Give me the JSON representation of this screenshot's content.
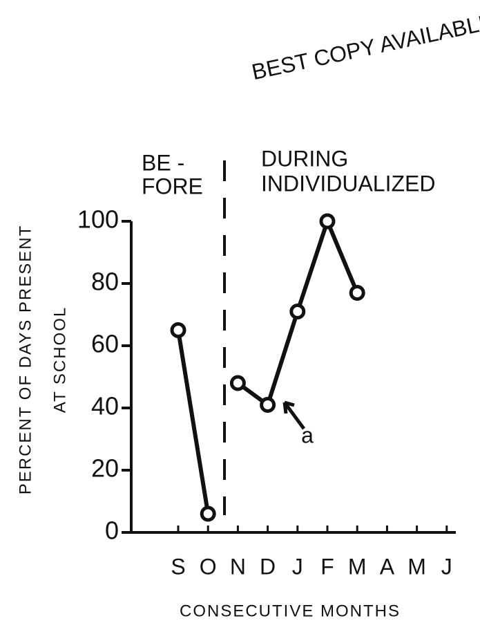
{
  "chart_data": {
    "type": "line",
    "stamp": "BEST COPY AVAILABLE",
    "ylabel": [
      "PERCENT OF DAYS PRESENT",
      "AT SCHOOL"
    ],
    "xlabel": "CONSECUTIVE MONTHS",
    "annotations": [
      "BE -",
      "FORE",
      "DURING",
      "INDIVIDUALIZED",
      "a"
    ],
    "categories": [
      "S",
      "O",
      "N",
      "D",
      "J",
      "F",
      "M",
      "A",
      "M",
      "J"
    ],
    "series": [
      {
        "color": "#111111",
        "values": [
          65,
          6,
          null,
          null,
          null,
          null,
          null,
          null,
          null,
          null
        ]
      },
      {
        "color": "#111111",
        "values": [
          null,
          null,
          48,
          41,
          71,
          100,
          77,
          null,
          null,
          null
        ]
      }
    ],
    "ylim": [
      0,
      100
    ],
    "yticks": [
      0,
      20,
      40,
      60,
      80,
      100
    ]
  }
}
